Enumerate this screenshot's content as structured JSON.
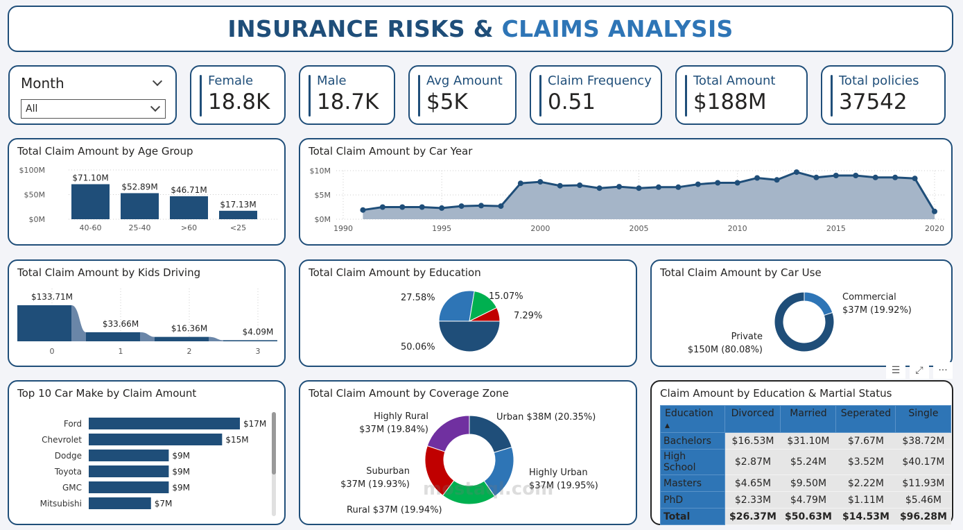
{
  "header": {
    "title_part1": "INSURANCE RISKS & ",
    "title_part2": "CLAIMS ANALYSIS"
  },
  "slicer": {
    "label": "Month",
    "value": "All"
  },
  "kpis": [
    {
      "label": "Female",
      "value": "18.8K"
    },
    {
      "label": "Male",
      "value": "18.7K"
    },
    {
      "label": "Avg Amount",
      "value": "$5K"
    },
    {
      "label": "Claim Frequency",
      "value": "0.51"
    },
    {
      "label": "Total Amount",
      "value": "$188M"
    },
    {
      "label": "Total policies",
      "value": "37542"
    }
  ],
  "colors": {
    "primary": "#1f4e79",
    "accent": "#2e75b6",
    "area": "#a5b5c8",
    "green": "#00b050",
    "red": "#c00000",
    "purple": "#7030a0"
  },
  "chart_data": [
    {
      "id": "age",
      "type": "bar",
      "title": "Total Claim Amount by Age Group",
      "categories": [
        "40-60",
        "25-40",
        ">60",
        "<25"
      ],
      "values": [
        71.1,
        52.89,
        46.71,
        17.13
      ],
      "labels": [
        "$71.10M",
        "$52.89M",
        "$46.71M",
        "$17.13M"
      ],
      "yticks": [
        "$0M",
        "$50M",
        "$100M"
      ],
      "ylim": [
        0,
        100
      ],
      "unit": "$M",
      "grid": true
    },
    {
      "id": "year",
      "type": "area",
      "title": "Total Claim Amount by Car Year",
      "x": [
        1991,
        1992,
        1993,
        1994,
        1995,
        1996,
        1997,
        1998,
        1999,
        2000,
        2001,
        2002,
        2003,
        2004,
        2005,
        2006,
        2007,
        2008,
        2009,
        2010,
        2011,
        2012,
        2013,
        2014,
        2015,
        2016,
        2017,
        2018,
        2019,
        2020
      ],
      "values": [
        1.9,
        2.5,
        2.5,
        2.5,
        2.3,
        2.7,
        2.8,
        2.7,
        7.4,
        7.7,
        6.9,
        7.0,
        6.4,
        6.7,
        6.4,
        6.6,
        6.6,
        7.2,
        7.5,
        7.5,
        8.5,
        8.1,
        9.7,
        8.6,
        9.0,
        9.0,
        8.6,
        8.6,
        8.4,
        1.6
      ],
      "xticks": [
        "1990",
        "1995",
        "2000",
        "2005",
        "2010",
        "2015",
        "2020"
      ],
      "yticks": [
        "$0M",
        "$5M",
        "$10M"
      ],
      "ylim": [
        0,
        10
      ],
      "xlim": [
        1990,
        2020
      ],
      "unit": "$M",
      "grid": true
    },
    {
      "id": "kids",
      "type": "area",
      "title": "Total Claim Amount by Kids Driving",
      "categories": [
        "0",
        "1",
        "2",
        "3"
      ],
      "values": [
        133.71,
        33.66,
        16.36,
        4.09
      ],
      "labels": [
        "$133.71M",
        "$33.66M",
        "$16.36M",
        "$4.09M"
      ],
      "unit": "$M"
    },
    {
      "id": "edu",
      "type": "pie",
      "title": "Total Claim Amount by Education",
      "values": [
        50.06,
        27.58,
        15.07,
        7.29
      ],
      "labels": [
        "50.06%",
        "27.58%",
        "15.07%",
        "7.29%"
      ],
      "colors": [
        "#1f4e79",
        "#2e75b6",
        "#00b050",
        "#c00000"
      ]
    },
    {
      "id": "use",
      "type": "pie",
      "title": "Total Claim Amount by Car Use",
      "categories": [
        "Commercial",
        "Private"
      ],
      "values": [
        19.92,
        80.08
      ],
      "labels": [
        "$37M (19.92%)",
        "$150M (80.08%)"
      ],
      "colors": [
        "#2e75b6",
        "#1f4e79"
      ]
    },
    {
      "id": "make",
      "type": "bar",
      "title": "Top 10 Car Make by Claim Amount",
      "categories": [
        "Ford",
        "Chevrolet",
        "Dodge",
        "Toyota",
        "GMC",
        "Mitsubishi"
      ],
      "values": [
        17,
        15,
        9,
        9,
        9,
        7
      ],
      "labels": [
        "$17M",
        "$15M",
        "$9M",
        "$9M",
        "$9M",
        "$7M"
      ],
      "unit": "$M",
      "orientation": "horizontal"
    },
    {
      "id": "zone",
      "type": "pie",
      "title": "Total Claim Amount by Coverage Zone",
      "categories": [
        "Urban",
        "Highly Urban",
        "Rural",
        "Suburban",
        "Highly Rural"
      ],
      "values": [
        20.35,
        19.95,
        19.94,
        19.93,
        19.84
      ],
      "labels": [
        "Urban $38M (20.35%)",
        "Highly Urban $37M (19.95%)",
        "Rural $37M (19.94%)",
        "Suburban $37M (19.93%)",
        "Highly Rural $37M (19.84%)"
      ],
      "colors": [
        "#1f4e79",
        "#2e75b6",
        "#00b050",
        "#c00000",
        "#7030a0"
      ]
    }
  ],
  "matrix": {
    "title": "Claim Amount by Education & Martial Status",
    "columns": [
      "Education",
      "Divorced",
      "Married",
      "Seperated",
      "Single"
    ],
    "rows": [
      [
        "Bachelors",
        "$16.53M",
        "$31.10M",
        "$7.67M",
        "$38.72M"
      ],
      [
        "High School",
        "$2.87M",
        "$5.24M",
        "$3.52M",
        "$40.17M"
      ],
      [
        "Masters",
        "$4.65M",
        "$9.50M",
        "$2.22M",
        "$11.93M"
      ],
      [
        "PhD",
        "$2.33M",
        "$4.79M",
        "$1.11M",
        "$5.46M"
      ],
      [
        "Total",
        "$26.37M",
        "$50.63M",
        "$14.53M",
        "$96.28M"
      ]
    ]
  },
  "toolbar": {
    "filter": "☰",
    "focus": "⤢",
    "more": "···"
  },
  "watermark": "mostaql.com"
}
